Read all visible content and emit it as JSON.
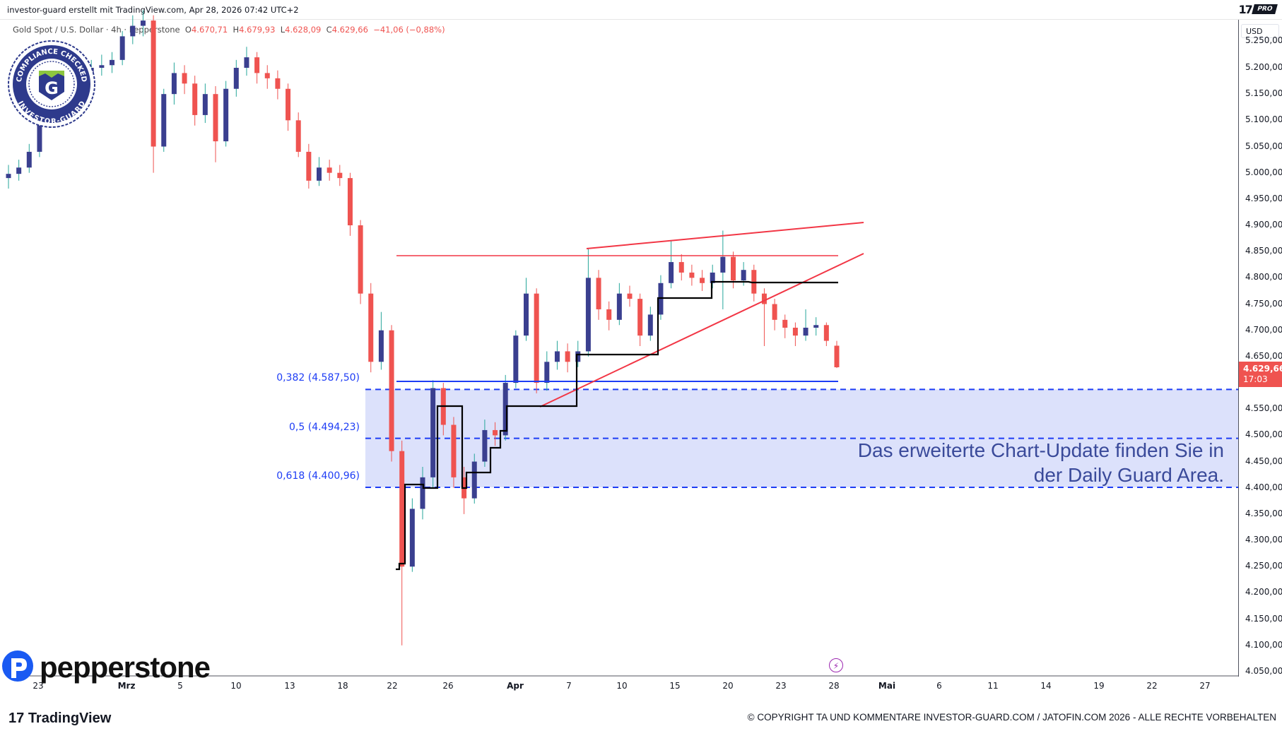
{
  "header": {
    "text": "investor-guard erstellt mit TradingView.com, Apr 28, 2026 07:42 UTC+2",
    "pro_badge": "PRO"
  },
  "legend": {
    "symbol": "Gold Spot / U.S. Dollar · 4h · Pepperstone",
    "o_label": "O",
    "o": "4.670,71",
    "h_label": "H",
    "h": "4.679,93",
    "l_label": "L",
    "l": "4.628,09",
    "c_label": "C",
    "c": "4.629,66",
    "change": "−41,06 (−0,88%)"
  },
  "price_axis": {
    "currency": "USD",
    "labels": [
      "5.250,00",
      "5.200,00",
      "5.150,00",
      "5.100,00",
      "5.050,00",
      "5.000,00",
      "4.950,00",
      "4.900,00",
      "4.850,00",
      "4.800,00",
      "4.750,00",
      "4.700,00",
      "4.650,00",
      "4.600,00",
      "4.550,00",
      "4.500,00",
      "4.450,00",
      "4.400,00",
      "4.350,00",
      "4.300,00",
      "4.250,00",
      "4.200,00",
      "4.150,00",
      "4.100,00",
      "4.050,00"
    ],
    "last_price": "4.629,66",
    "countdown": "17:03"
  },
  "colors": {
    "up_body": "#3a3f8f",
    "up_wick": "#26a69a",
    "down": "#ef5350",
    "fib": "#1e3df5",
    "zone": "#dce1fb",
    "trendline": "#f23645",
    "stepline": "#000000"
  },
  "fib_levels": [
    {
      "label": "0,382 (4.587,50)",
      "price": 4587.5
    },
    {
      "label": "0,5 (4.494,23)",
      "price": 4494.23
    },
    {
      "label": "0,618 (4.400,96)",
      "price": 4400.96
    }
  ],
  "note": {
    "line1": "Das erweiterte Chart-Update finden Sie in",
    "line2": "der Daily Guard Area."
  },
  "branding": {
    "pepperstone": "pepperstone",
    "tradingview": "TradingView",
    "seal_top": "COMPLIANCE CHECKED",
    "seal_bottom": "INVESTOR-GUARD",
    "seal_letter": "G"
  },
  "copyright": "© COPYRIGHT TA UND KOMMENTARE INVESTOR-GUARD.COM / JATOFIN.COM 2026 - ALLE RECHTE VORBEHALTEN",
  "chart_data": {
    "type": "candlestick",
    "title": "Gold Spot / U.S. Dollar · 4h · Pepperstone",
    "x_tick_labels": [
      "23",
      "Mrz",
      "5",
      "10",
      "13",
      "18",
      "22",
      "26",
      "Apr",
      "7",
      "10",
      "15",
      "20",
      "23",
      "28",
      "Mai",
      "6",
      "11",
      "14",
      "19",
      "22",
      "27"
    ],
    "ylim": [
      4035,
      5275
    ],
    "grid": false,
    "horizontal_lines": [
      {
        "price": 4600,
        "style": "solid",
        "color": "#1e3df5"
      },
      {
        "price": 4842,
        "style": "solid",
        "color": "#f23645"
      }
    ],
    "candles_ohlc": [
      [
        4990,
        5015,
        4970,
        4998
      ],
      [
        4998,
        5025,
        4985,
        5010
      ],
      [
        5010,
        5055,
        5000,
        5040
      ],
      [
        5040,
        5130,
        5030,
        5120
      ],
      [
        5120,
        5165,
        5110,
        5150
      ],
      [
        5150,
        5180,
        5135,
        5160
      ],
      [
        5160,
        5190,
        5145,
        5175
      ],
      [
        5175,
        5205,
        5160,
        5190
      ],
      [
        5190,
        5215,
        5175,
        5200
      ],
      [
        5200,
        5225,
        5185,
        5205
      ],
      [
        5205,
        5230,
        5190,
        5215
      ],
      [
        5215,
        5270,
        5205,
        5260
      ],
      [
        5260,
        5300,
        5245,
        5280
      ],
      [
        5280,
        5310,
        5260,
        5290
      ],
      [
        5290,
        5300,
        5000,
        5050
      ],
      [
        5050,
        5160,
        5040,
        5150
      ],
      [
        5150,
        5210,
        5130,
        5190
      ],
      [
        5190,
        5205,
        5150,
        5170
      ],
      [
        5170,
        5185,
        5090,
        5110
      ],
      [
        5110,
        5170,
        5095,
        5150
      ],
      [
        5150,
        5165,
        5020,
        5060
      ],
      [
        5060,
        5175,
        5050,
        5160
      ],
      [
        5160,
        5215,
        5145,
        5200
      ],
      [
        5200,
        5240,
        5185,
        5220
      ],
      [
        5220,
        5230,
        5170,
        5190
      ],
      [
        5190,
        5205,
        5160,
        5180
      ],
      [
        5180,
        5195,
        5140,
        5160
      ],
      [
        5160,
        5170,
        5080,
        5100
      ],
      [
        5100,
        5115,
        5030,
        5040
      ],
      [
        5040,
        5055,
        4970,
        4985
      ],
      [
        4985,
        5030,
        4975,
        5010
      ],
      [
        5010,
        5025,
        4985,
        5000
      ],
      [
        5000,
        5015,
        4975,
        4990
      ],
      [
        4990,
        5000,
        4880,
        4900
      ],
      [
        4900,
        4910,
        4750,
        4770
      ],
      [
        4770,
        4790,
        4620,
        4640
      ],
      [
        4640,
        4735,
        4625,
        4700
      ],
      [
        4700,
        4710,
        4450,
        4470
      ],
      [
        4470,
        4490,
        4100,
        4250
      ],
      [
        4250,
        4380,
        4240,
        4360
      ],
      [
        4360,
        4440,
        4340,
        4420
      ],
      [
        4420,
        4605,
        4400,
        4590
      ],
      [
        4590,
        4600,
        4500,
        4520
      ],
      [
        4520,
        4535,
        4400,
        4420
      ],
      [
        4420,
        4440,
        4350,
        4380
      ],
      [
        4380,
        4465,
        4370,
        4450
      ],
      [
        4450,
        4530,
        4440,
        4510
      ],
      [
        4510,
        4525,
        4480,
        4500
      ],
      [
        4500,
        4615,
        4490,
        4600
      ],
      [
        4600,
        4700,
        4590,
        4690
      ],
      [
        4690,
        4800,
        4680,
        4770
      ],
      [
        4770,
        4780,
        4580,
        4600
      ],
      [
        4600,
        4660,
        4585,
        4640
      ],
      [
        4640,
        4680,
        4625,
        4660
      ],
      [
        4660,
        4675,
        4620,
        4640
      ],
      [
        4640,
        4680,
        4630,
        4660
      ],
      [
        4660,
        4855,
        4650,
        4800
      ],
      [
        4800,
        4815,
        4720,
        4740
      ],
      [
        4740,
        4755,
        4700,
        4720
      ],
      [
        4720,
        4790,
        4710,
        4770
      ],
      [
        4770,
        4785,
        4745,
        4760
      ],
      [
        4760,
        4770,
        4670,
        4690
      ],
      [
        4690,
        4745,
        4680,
        4730
      ],
      [
        4730,
        4805,
        4720,
        4790
      ],
      [
        4790,
        4870,
        4780,
        4830
      ],
      [
        4830,
        4845,
        4795,
        4810
      ],
      [
        4810,
        4825,
        4785,
        4800
      ],
      [
        4800,
        4815,
        4775,
        4790
      ],
      [
        4790,
        4825,
        4780,
        4810
      ],
      [
        4810,
        4890,
        4740,
        4840
      ],
      [
        4840,
        4850,
        4780,
        4795
      ],
      [
        4795,
        4830,
        4785,
        4815
      ],
      [
        4815,
        4825,
        4755,
        4770
      ],
      [
        4770,
        4780,
        4670,
        4750
      ],
      [
        4750,
        4760,
        4700,
        4720
      ],
      [
        4720,
        4730,
        4685,
        4705
      ],
      [
        4705,
        4715,
        4670,
        4690
      ],
      [
        4690,
        4740,
        4680,
        4705
      ],
      [
        4705,
        4725,
        4690,
        4710
      ],
      [
        4710,
        4715,
        4670,
        4680
      ],
      [
        4670.71,
        4679.93,
        4628.09,
        4629.66
      ]
    ]
  }
}
